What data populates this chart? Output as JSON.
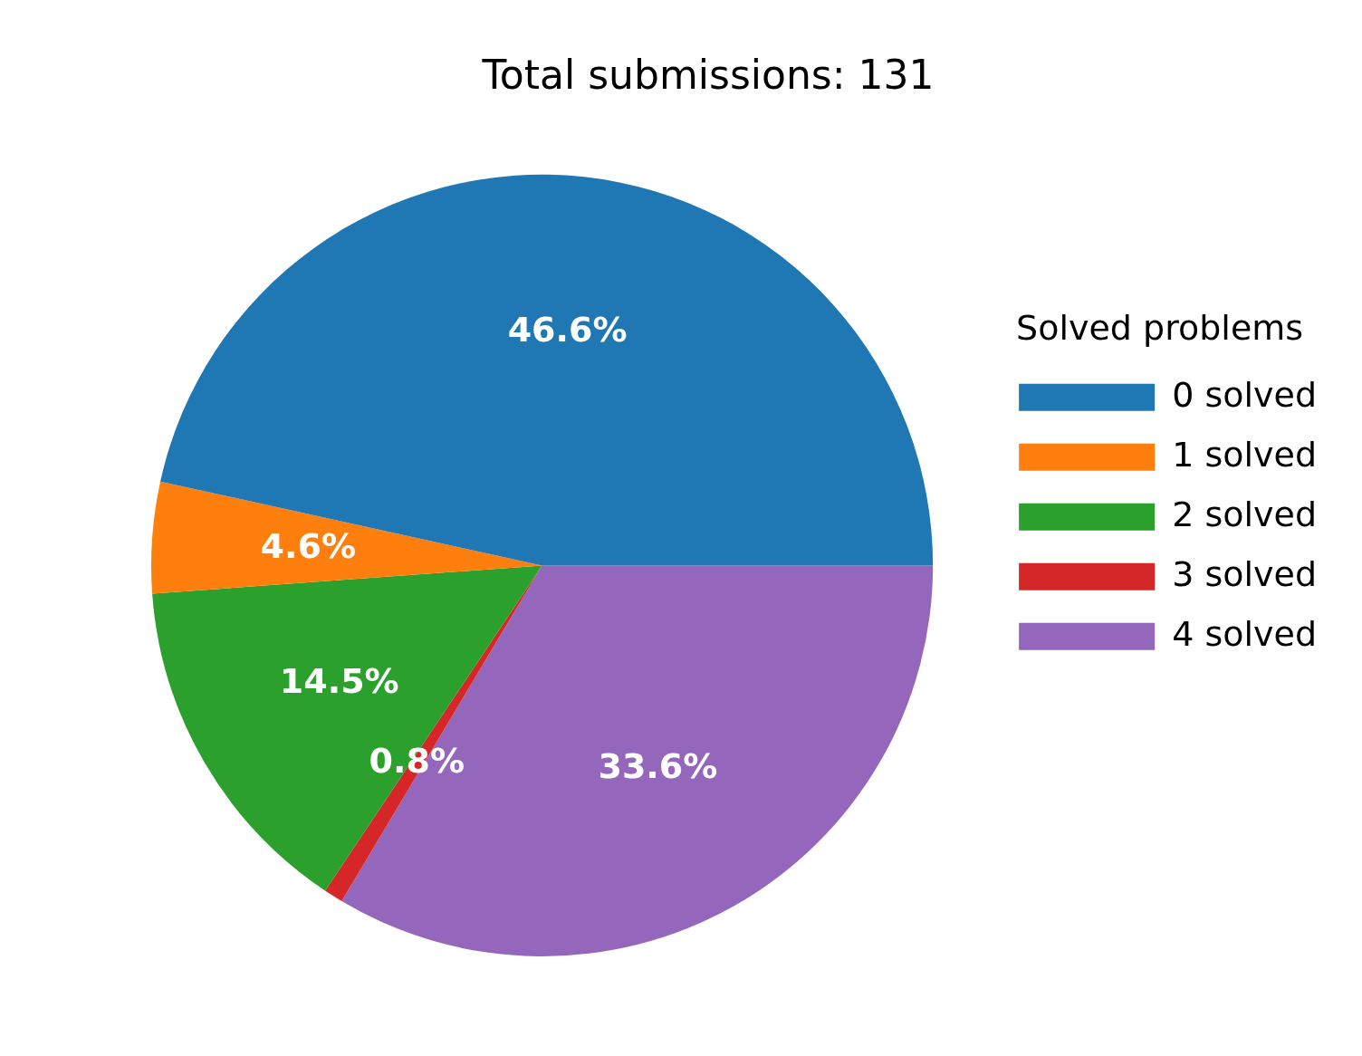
{
  "chart_data": {
    "type": "pie",
    "title": "Total submissions: 131",
    "legend_title": "Solved problems",
    "categories": [
      "0 solved",
      "1 solved",
      "2 solved",
      "3 solved",
      "4 solved"
    ],
    "values": [
      46.6,
      4.6,
      14.5,
      0.8,
      33.6
    ],
    "colors": [
      "#1f77b4",
      "#ff7f0e",
      "#2ca02c",
      "#d62728",
      "#9467bd"
    ],
    "value_labels": [
      "46.6%",
      "4.6%",
      "14.5%",
      "0.8%",
      "33.6%"
    ],
    "legend": "right"
  }
}
